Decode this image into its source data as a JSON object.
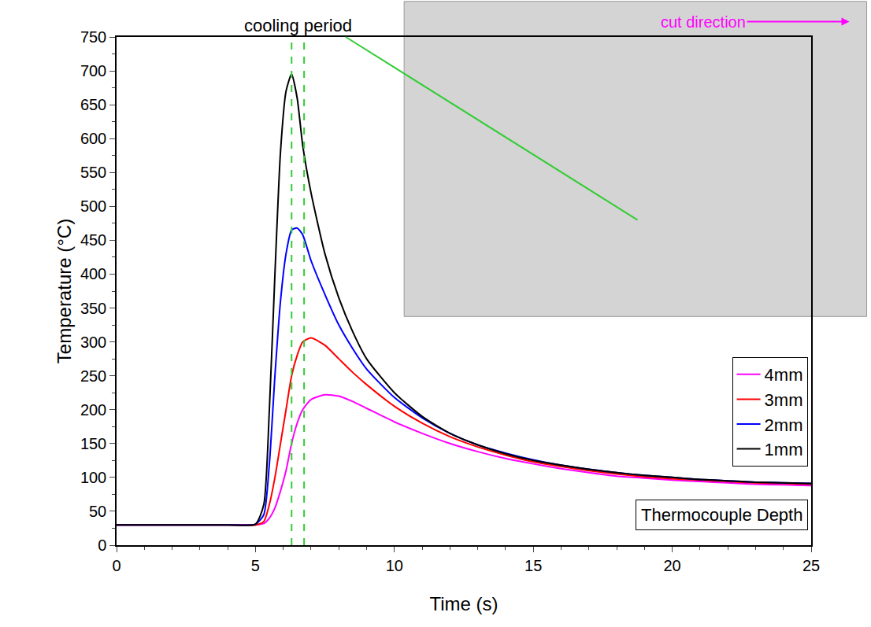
{
  "chart_data": {
    "type": "line",
    "x_label": "Time (s)",
    "y_label": "Temperature (°C)",
    "x": [
      0,
      1,
      2,
      3,
      4,
      5,
      5.3,
      5.5,
      5.7,
      5.9,
      6.1,
      6.3,
      6.5,
      6.7,
      7,
      7.5,
      8,
      8.5,
      9,
      10,
      11,
      12,
      13,
      14,
      15,
      16,
      17,
      18,
      19,
      20,
      21,
      22,
      23,
      24,
      25
    ],
    "series": [
      {
        "name": "4mm",
        "color": "#ff00ff",
        "values": [
          30,
          30,
          30,
          30,
          30,
          30,
          32,
          40,
          55,
          80,
          110,
          150,
          180,
          200,
          215,
          222,
          220,
          212,
          202,
          182,
          165,
          150,
          138,
          128,
          120,
          113,
          107,
          102,
          99,
          96,
          94,
          92,
          90,
          89,
          88
        ]
      },
      {
        "name": "3mm",
        "color": "#ff0000",
        "values": [
          30,
          30,
          30,
          30,
          30,
          30,
          35,
          60,
          100,
          150,
          200,
          250,
          280,
          300,
          306,
          295,
          275,
          255,
          237,
          205,
          180,
          160,
          145,
          133,
          123,
          116,
          110,
          105,
          101,
          98,
          96,
          94,
          92,
          91,
          90
        ]
      },
      {
        "name": "2mm",
        "color": "#0000ff",
        "values": [
          30,
          30,
          30,
          30,
          30,
          31,
          45,
          120,
          250,
          360,
          430,
          465,
          468,
          458,
          420,
          370,
          325,
          290,
          260,
          218,
          188,
          165,
          148,
          136,
          126,
          118,
          112,
          107,
          103,
          100,
          97,
          95,
          93,
          92,
          91
        ]
      },
      {
        "name": "1mm",
        "color": "#000000",
        "values": [
          30,
          30,
          30,
          30,
          30,
          31,
          60,
          200,
          400,
          580,
          670,
          695,
          660,
          590,
          520,
          430,
          365,
          315,
          275,
          225,
          190,
          165,
          148,
          135,
          125,
          118,
          112,
          107,
          103,
          100,
          97,
          95,
          93,
          92,
          91
        ]
      }
    ],
    "xlim": [
      0,
      25
    ],
    "xticks": [
      0,
      5,
      10,
      15,
      20,
      25
    ],
    "ylim": [
      0,
      750
    ],
    "yticks": [
      0,
      50,
      100,
      150,
      200,
      250,
      300,
      350,
      400,
      450,
      500,
      550,
      600,
      650,
      700,
      750
    ],
    "grid": false,
    "legend": "right",
    "cooling_period": {
      "text": "cooling period",
      "x": [
        6.3,
        6.75
      ],
      "color": "#33cc33"
    },
    "cut_direction": {
      "text": "cut direction",
      "color": "#ff00ff"
    },
    "legend_note": "Thermocouple Depth"
  }
}
